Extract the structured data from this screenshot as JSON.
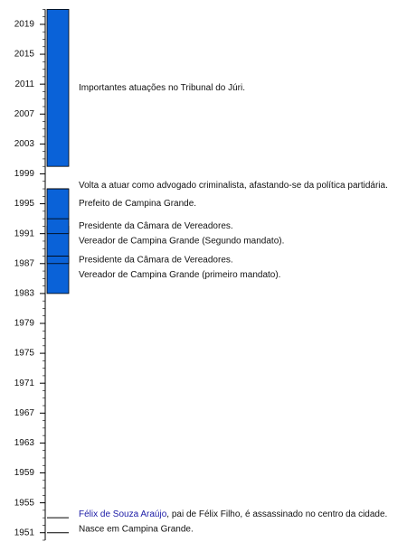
{
  "chart_data": {
    "type": "timeline",
    "ylim": [
      1950,
      2021
    ],
    "yticks": [
      1951,
      1955,
      1959,
      1963,
      1967,
      1971,
      1975,
      1979,
      1983,
      1987,
      1991,
      1995,
      1999,
      2003,
      2007,
      2011,
      2015,
      2019
    ],
    "color": "#0a62d8",
    "periods": [
      {
        "start": 1983,
        "end": 1988,
        "label": "Vereador de Campina Grande (primeiro mandato)."
      },
      {
        "start": 1987,
        "end": 1988,
        "label": "Presidente da Câmara de Vereadores."
      },
      {
        "start": 1988,
        "end": 1992,
        "label": "Vereador de Campina Grande (Segundo mandato)."
      },
      {
        "start": 1991,
        "end": 1993,
        "label": "Presidente da Câmara de Vereadores."
      },
      {
        "start": 1993,
        "end": 1997,
        "label": "Prefeito de Campina Grande."
      },
      {
        "start": 2000,
        "end": 2021,
        "label": "Importantes atuações no Tribunal do Júri."
      }
    ],
    "events": [
      {
        "year": 1951,
        "label": "Nasce em Campina Grande."
      },
      {
        "year": 1953,
        "link": "Félix de Souza Araújo",
        "label": ", pai de Félix Filho, é assassinado no centro da cidade."
      },
      {
        "year": 1997,
        "label": "Volta a atuar como advogado criminalista, afastando-se da política partidária."
      }
    ]
  }
}
